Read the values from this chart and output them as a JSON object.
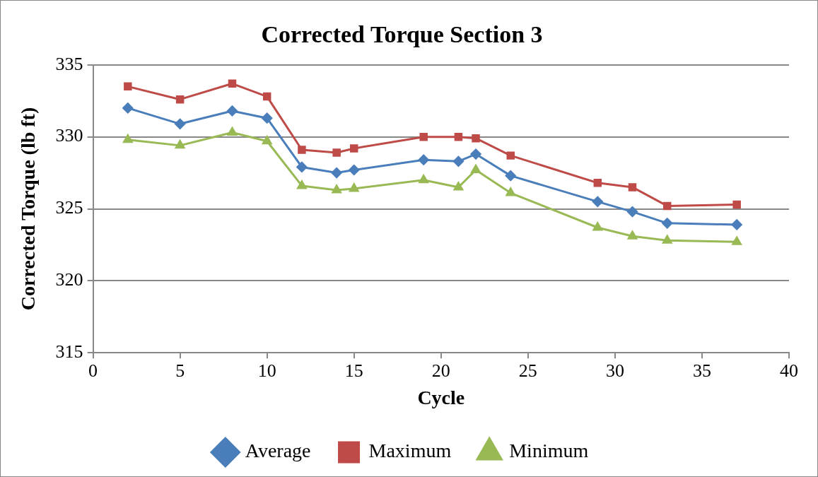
{
  "chart_data": {
    "type": "line",
    "title": "Corrected Torque Section 3",
    "xlabel": "Cycle",
    "ylabel": "Corrected Torque (lb ft)",
    "x": [
      2,
      5,
      8,
      10,
      12,
      14,
      15,
      19,
      21,
      22,
      24,
      29,
      31,
      33,
      37
    ],
    "series": [
      {
        "name": "Average",
        "color": "#4a7ebb",
        "marker": "diamond",
        "values": [
          332.0,
          330.9,
          331.8,
          331.3,
          327.9,
          327.5,
          327.7,
          328.4,
          328.3,
          328.8,
          327.3,
          325.5,
          324.8,
          324.0,
          323.9
        ]
      },
      {
        "name": "Maximum",
        "color": "#be4b48",
        "marker": "square",
        "values": [
          333.5,
          332.6,
          333.7,
          332.8,
          329.1,
          328.9,
          329.2,
          330.0,
          330.0,
          329.9,
          328.7,
          326.8,
          326.5,
          325.2,
          325.3
        ]
      },
      {
        "name": "Minimum",
        "color": "#98b954",
        "marker": "triangle",
        "values": [
          329.8,
          329.4,
          330.3,
          329.7,
          326.6,
          326.3,
          326.4,
          327.0,
          326.5,
          327.7,
          326.1,
          323.7,
          323.1,
          322.8,
          322.7
        ]
      }
    ],
    "xlim": [
      0,
      40
    ],
    "xticks": [
      0,
      5,
      10,
      15,
      20,
      25,
      30,
      35,
      40
    ],
    "ylim": [
      315,
      335
    ],
    "yticks": [
      315,
      320,
      325,
      330,
      335
    ],
    "grid": "y",
    "legend": "bottom"
  }
}
